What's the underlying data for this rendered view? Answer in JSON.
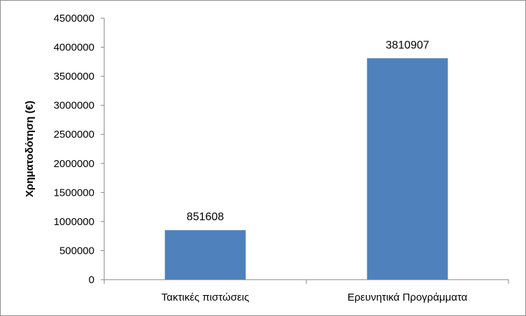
{
  "chart_data": {
    "type": "bar",
    "categories": [
      "Τακτικές πιστώσεις",
      "Ερευνητικά Προγράμματα"
    ],
    "values": [
      851608,
      3810907
    ],
    "data_labels": [
      "851608",
      "3810907"
    ],
    "title": "",
    "xlabel": "",
    "ylabel": "Χρηματοδότηση (€)",
    "ylim": [
      0,
      4500000
    ],
    "yticks": [
      0,
      500000,
      1000000,
      1500000,
      2000000,
      2500000,
      3000000,
      3500000,
      4000000,
      4500000
    ],
    "ytick_labels": [
      "0",
      "500000",
      "1000000",
      "1500000",
      "2000000",
      "2500000",
      "3000000",
      "3500000",
      "4000000",
      "4500000"
    ],
    "grid": false,
    "legend": "none",
    "bar_color": "#4F81BD"
  }
}
